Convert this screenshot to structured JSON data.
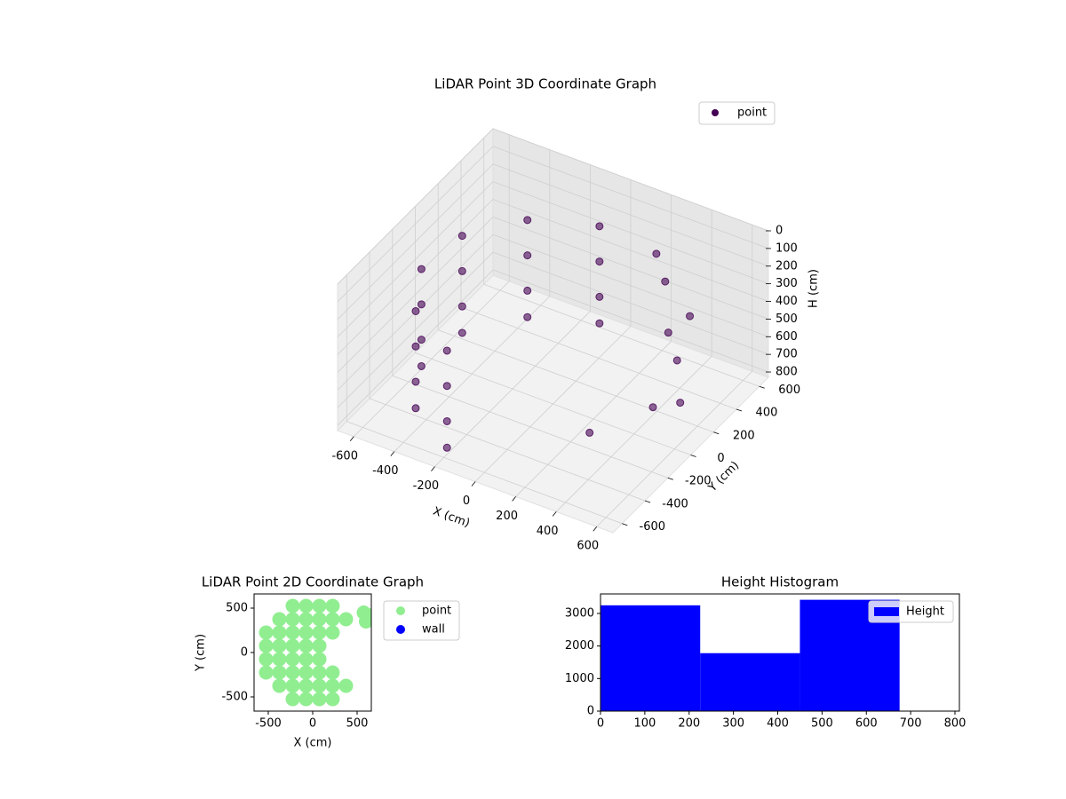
{
  "chart_data": [
    {
      "type": "scatter3d",
      "title": "LiDAR Point 3D Coordinate Graph",
      "xlabel": "X (cm)",
      "ylabel": "Y (cm)",
      "zlabel": "H (cm)",
      "xlim": [
        -680,
        680
      ],
      "ylim": [
        -680,
        680
      ],
      "zlim": [
        830,
        0
      ],
      "xticks": [
        -600,
        -400,
        -200,
        0,
        200,
        400,
        600
      ],
      "yticks": [
        -600,
        -400,
        -200,
        0,
        200,
        400,
        600
      ],
      "zticks": [
        0,
        100,
        200,
        300,
        400,
        500,
        600,
        700,
        800
      ],
      "grid": true,
      "legend": "upper right",
      "series": [
        {
          "name": "point",
          "color": "#440154",
          "x": [
            -104,
            -386,
            -564,
            -591,
            -460,
            -205,
            -104,
            -386,
            -564,
            -591,
            -460,
            -205,
            -104,
            -386,
            -564,
            -591,
            -460,
            -205,
            -104,
            -386,
            -564,
            -591,
            -460,
            -205,
            300,
            400,
            500,
            550,
            200,
            450,
            600,
            350
          ],
          "y": [
            591,
            460,
            205,
            -104,
            -386,
            -564,
            591,
            460,
            205,
            -104,
            -386,
            -564,
            591,
            460,
            205,
            -104,
            -386,
            -564,
            591,
            460,
            205,
            -104,
            -386,
            -564,
            450,
            300,
            200,
            -100,
            550,
            400,
            50,
            -300
          ],
          "z": [
            250,
            250,
            250,
            250,
            250,
            250,
            450,
            450,
            450,
            450,
            450,
            450,
            650,
            650,
            650,
            650,
            650,
            650,
            800,
            800,
            800,
            800,
            800,
            800,
            300,
            450,
            500,
            550,
            250,
            400,
            600,
            650
          ]
        }
      ]
    },
    {
      "type": "scatter",
      "title": "LiDAR Point 2D Coordinate Graph",
      "xlabel": "X (cm)",
      "ylabel": "Y (cm)",
      "xlim": [
        -660,
        660
      ],
      "ylim": [
        -660,
        660
      ],
      "xticks": [
        -500,
        0,
        500
      ],
      "yticks": [
        -500,
        0,
        500
      ],
      "legend": "outside right",
      "series": [
        {
          "name": "point",
          "color": "#90ee90",
          "x": [
            -525,
            -525,
            -525,
            -525,
            -375,
            -375,
            -375,
            -375,
            -375,
            -375,
            -225,
            -225,
            -225,
            -225,
            -225,
            -225,
            -225,
            -225,
            -75,
            -75,
            -75,
            -75,
            -75,
            -75,
            -75,
            -75,
            75,
            75,
            75,
            75,
            75,
            75,
            75,
            75,
            225,
            225,
            225,
            225,
            225,
            225,
            375,
            375,
            575,
            600,
            630
          ],
          "y": [
            -225,
            -75,
            75,
            225,
            -375,
            -225,
            -75,
            75,
            225,
            375,
            -525,
            -375,
            -225,
            -75,
            75,
            225,
            375,
            525,
            -525,
            -375,
            -225,
            -75,
            75,
            225,
            375,
            525,
            -525,
            -375,
            -225,
            -75,
            75,
            225,
            375,
            525,
            -525,
            -375,
            -225,
            225,
            375,
            525,
            -375,
            375,
            450,
            350,
            420
          ]
        },
        {
          "name": "wall",
          "color": "#0000ff",
          "x": [],
          "y": []
        }
      ]
    },
    {
      "type": "histogram",
      "title": "Height Histogram",
      "xlim": [
        0,
        810
      ],
      "ylim": [
        0,
        3600
      ],
      "xticks": [
        0,
        100,
        200,
        300,
        400,
        500,
        600,
        700,
        800
      ],
      "yticks": [
        0,
        1000,
        2000,
        3000
      ],
      "legend": "upper right",
      "series": [
        {
          "name": "Height",
          "color": "#0000ff",
          "bins": [
            0,
            225,
            450,
            675
          ],
          "values": [
            3250,
            1780,
            3420
          ]
        }
      ]
    }
  ]
}
